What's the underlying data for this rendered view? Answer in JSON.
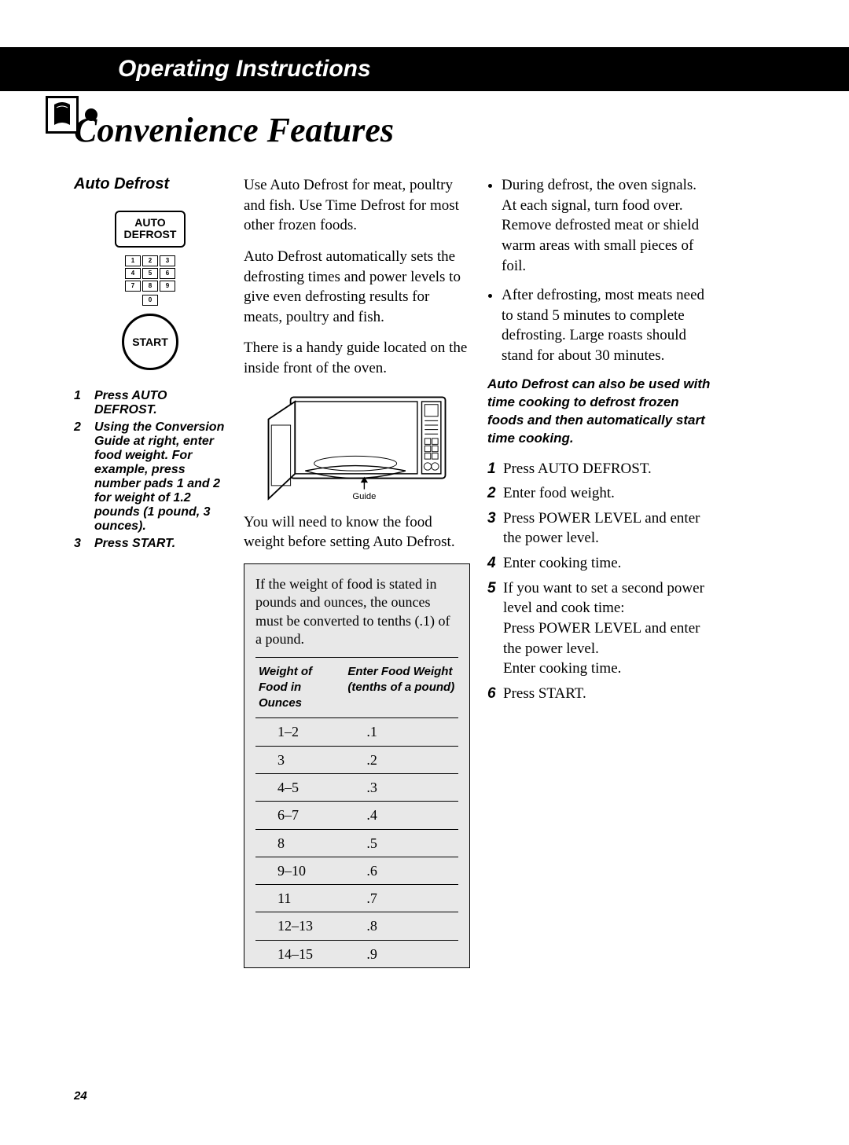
{
  "header": {
    "title": "Operating Instructions"
  },
  "section_title": "Convenience Features",
  "sidebar": {
    "heading": "Auto Defrost",
    "btn_auto_line1": "AUTO",
    "btn_auto_line2": "DEFROST",
    "keypad": {
      "k1": "1",
      "k2": "2",
      "k3": "3",
      "k4": "4",
      "k5": "5",
      "k6": "6",
      "k7": "7",
      "k8": "8",
      "k9": "9",
      "k0": "0"
    },
    "btn_start": "START",
    "steps": [
      {
        "n": "1",
        "t": "Press AUTO DEFROST."
      },
      {
        "n": "2",
        "t": "Using the Conversion Guide at right, enter food weight. For example, press number pads 1 and 2 for weight of 1.2 pounds (1 pound, 3 ounces)."
      },
      {
        "n": "3",
        "t": "Press START."
      }
    ]
  },
  "middle": {
    "p1": "Use Auto Defrost for meat, poultry and fish. Use Time Defrost for most other frozen foods.",
    "p2": "Auto Defrost automatically sets the defrosting times and power levels to give even defrosting results for meats, poultry and fish.",
    "p3": "There is a handy guide located on the inside front of the oven.",
    "guide_label": "Guide",
    "p4": "You will need to know the food weight before setting Auto Defrost.",
    "conversion": {
      "intro": "If the weight of food is stated in pounds and ounces, the ounces must be converted to tenths (.1) of a pound.",
      "col1_header": "Weight of Food in Ounces",
      "col2_header": "Enter Food Weight (tenths of a pound)",
      "rows": [
        {
          "oz": "1–2",
          "tenths": ".1"
        },
        {
          "oz": "3",
          "tenths": ".2"
        },
        {
          "oz": "4–5",
          "tenths": ".3"
        },
        {
          "oz": "6–7",
          "tenths": ".4"
        },
        {
          "oz": "8",
          "tenths": ".5"
        },
        {
          "oz": "9–10",
          "tenths": ".6"
        },
        {
          "oz": "11",
          "tenths": ".7"
        },
        {
          "oz": "12–13",
          "tenths": ".8"
        },
        {
          "oz": "14–15",
          "tenths": ".9"
        }
      ]
    }
  },
  "right": {
    "bullets": [
      "During defrost, the oven signals. At each signal, turn food over. Remove defrosted meat or shield warm areas with small pieces of foil.",
      "After defrosting, most meats need to stand 5 minutes to complete defrosting. Large roasts should stand for about 30 minutes."
    ],
    "emph": "Auto Defrost can also be used with time cooking to defrost frozen foods and then automatically start time cooking.",
    "steps": [
      {
        "n": "1",
        "t": "Press AUTO DEFROST."
      },
      {
        "n": "2",
        "t": "Enter food weight."
      },
      {
        "n": "3",
        "t": "Press POWER LEVEL and enter the power level."
      },
      {
        "n": "4",
        "t": "Enter cooking time."
      },
      {
        "n": "5",
        "t": "If you want to set a second power level and cook time:\nPress POWER LEVEL and enter the power level.\nEnter cooking time."
      },
      {
        "n": "6",
        "t": "Press START."
      }
    ]
  },
  "page_number": "24",
  "colors": {
    "header_bg": "#000000",
    "header_fg": "#ffffff",
    "box_bg": "#e8e8e8",
    "text": "#000000"
  }
}
